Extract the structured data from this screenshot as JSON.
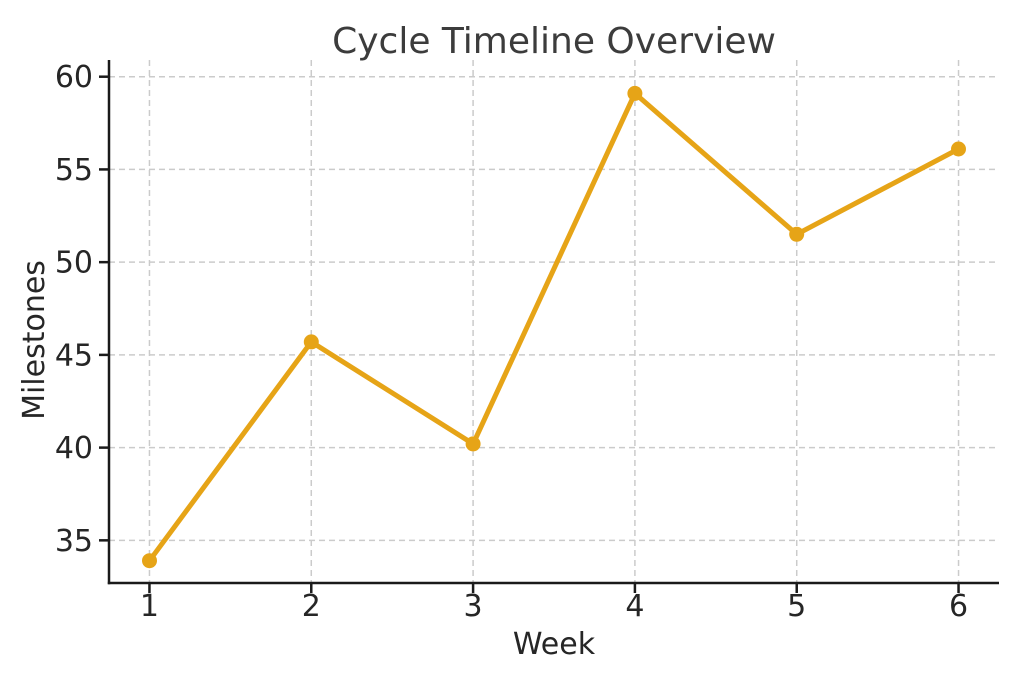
{
  "chart_data": {
    "type": "line",
    "title": "Cycle Timeline Overview",
    "xlabel": "Week",
    "ylabel": "Milestones",
    "x": [
      1,
      2,
      3,
      4,
      5,
      6
    ],
    "series": [
      {
        "name": "Milestones",
        "values": [
          33.9,
          45.7,
          40.2,
          59.1,
          51.5,
          56.1
        ]
      }
    ],
    "xticks": [
      1,
      2,
      3,
      4,
      5,
      6
    ],
    "yticks": [
      35,
      40,
      45,
      50,
      55,
      60
    ],
    "xlim": [
      0.75,
      6.25
    ],
    "ylim": [
      32.7,
      60.9
    ],
    "grid": "both-dashed",
    "legend": "none"
  },
  "style": {
    "line_color": "#E6A417",
    "marker_color": "#E6A417",
    "grid_color": "#cbcbcb",
    "axis_color": "#1a1a1a",
    "title_color": "#3c3c3c",
    "tick_color": "#262626",
    "background": "#ffffff"
  }
}
